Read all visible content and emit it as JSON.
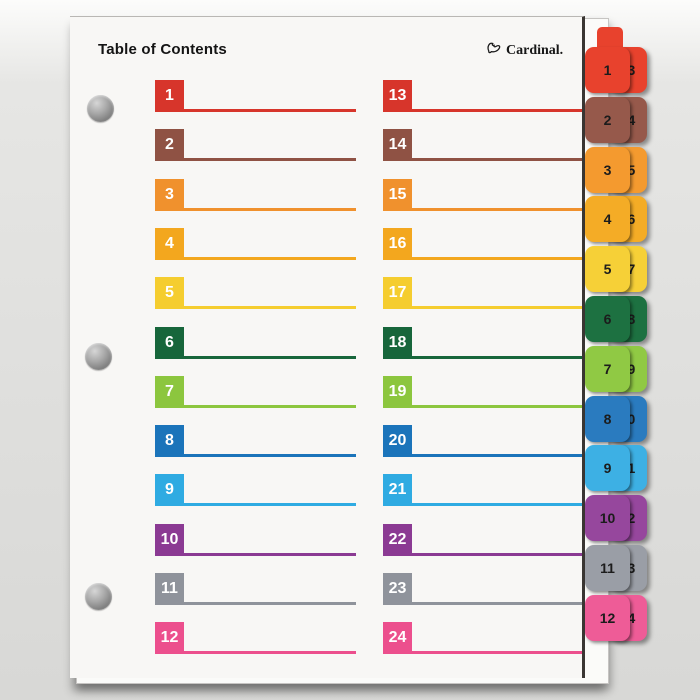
{
  "page": {
    "title": "Table of Contents",
    "brand": "Cardinal."
  },
  "toc": {
    "left_column": [
      {
        "number": "1",
        "color": "#D7352B"
      },
      {
        "number": "2",
        "color": "#8F5244"
      },
      {
        "number": "3",
        "color": "#F0912D"
      },
      {
        "number": "4",
        "color": "#F3A71E"
      },
      {
        "number": "5",
        "color": "#F5CD2F"
      },
      {
        "number": "6",
        "color": "#17663B"
      },
      {
        "number": "7",
        "color": "#8CC63E"
      },
      {
        "number": "8",
        "color": "#1B74BA"
      },
      {
        "number": "9",
        "color": "#2FABE2"
      },
      {
        "number": "10",
        "color": "#8B3A93"
      },
      {
        "number": "11",
        "color": "#8F939B"
      },
      {
        "number": "12",
        "color": "#EC4F8D"
      }
    ],
    "right_column": [
      {
        "number": "13",
        "color": "#D7352B"
      },
      {
        "number": "14",
        "color": "#8F5244"
      },
      {
        "number": "15",
        "color": "#F0912D"
      },
      {
        "number": "16",
        "color": "#F3A71E"
      },
      {
        "number": "17",
        "color": "#F5CD2F"
      },
      {
        "number": "18",
        "color": "#17663B"
      },
      {
        "number": "19",
        "color": "#8CC63E"
      },
      {
        "number": "20",
        "color": "#1B74BA"
      },
      {
        "number": "21",
        "color": "#2FABE2"
      },
      {
        "number": "22",
        "color": "#8B3A93"
      },
      {
        "number": "23",
        "color": "#8F939B"
      },
      {
        "number": "24",
        "color": "#EC4F8D"
      }
    ]
  },
  "tabs": [
    {
      "front_label": "1",
      "back_label": "13",
      "color": "#E8422D"
    },
    {
      "front_label": "2",
      "back_label": "14",
      "color": "#96594B"
    },
    {
      "front_label": "3",
      "back_label": "15",
      "color": "#F49A2F"
    },
    {
      "front_label": "4",
      "back_label": "16",
      "color": "#F4AC26"
    },
    {
      "front_label": "5",
      "back_label": "17",
      "color": "#F6D037"
    },
    {
      "front_label": "6",
      "back_label": "18",
      "color": "#1D7141"
    },
    {
      "front_label": "7",
      "back_label": "19",
      "color": "#90C944"
    },
    {
      "front_label": "8",
      "back_label": "20",
      "color": "#2A7BBF"
    },
    {
      "front_label": "9",
      "back_label": "21",
      "color": "#3DB0E4"
    },
    {
      "front_label": "10",
      "back_label": "22",
      "color": "#96479D"
    },
    {
      "front_label": "11",
      "back_label": "23",
      "color": "#9A9EA6"
    },
    {
      "front_label": "12",
      "back_label": "24",
      "color": "#EE5C97"
    }
  ]
}
